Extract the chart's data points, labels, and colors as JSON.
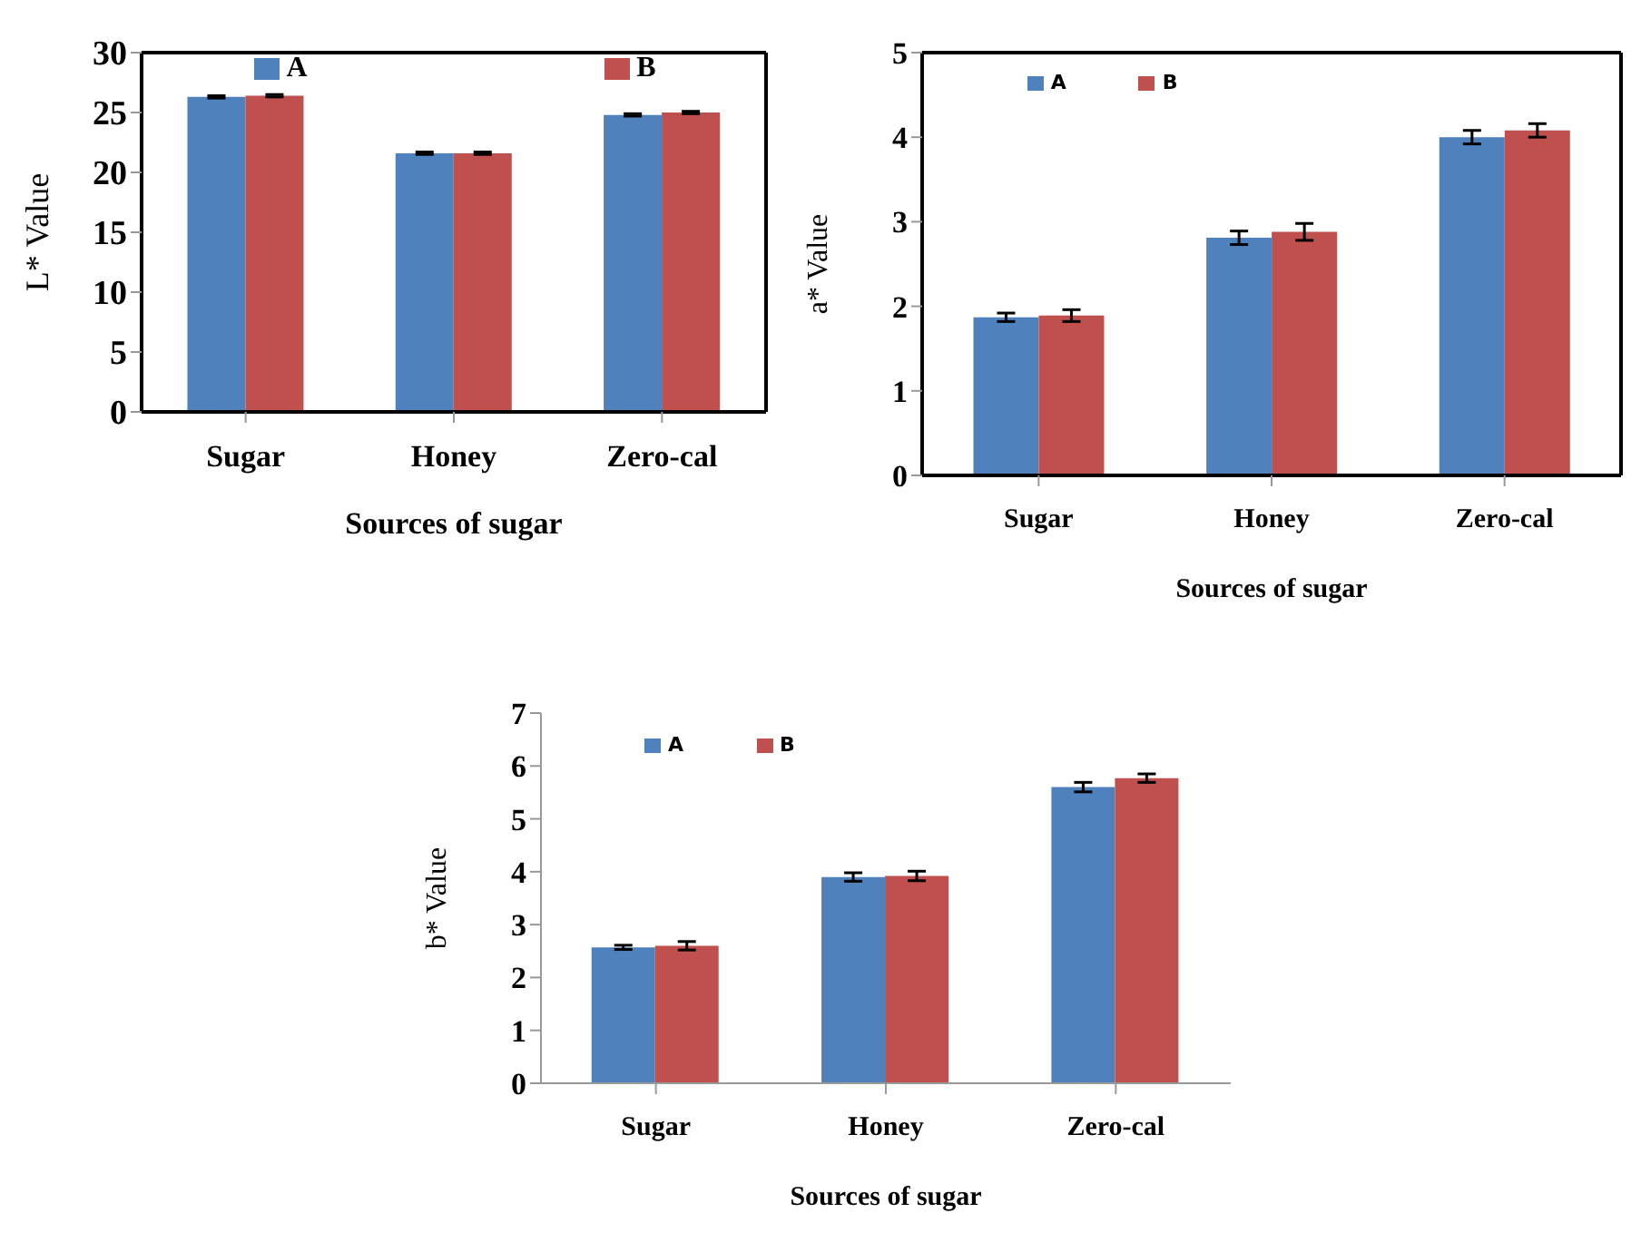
{
  "chart_data": [
    {
      "type": "bar",
      "categories": [
        "Sugar",
        "Honey",
        "Zero-cal"
      ],
      "xlabel": "Sources of sugar",
      "ylabel": "L* Value",
      "ylim": [
        0,
        30
      ],
      "yticks": [
        0,
        5,
        10,
        15,
        20,
        25,
        30
      ],
      "grid": false,
      "legend": "top",
      "series": [
        {
          "name": "A",
          "color": "#4f81bd",
          "values": [
            26.3,
            21.6,
            24.8
          ],
          "errors": [
            0.1,
            0.1,
            0.1
          ]
        },
        {
          "name": "B",
          "color": "#c0504d",
          "values": [
            26.4,
            21.6,
            25.0
          ],
          "errors": [
            0.1,
            0.1,
            0.1
          ]
        }
      ]
    },
    {
      "type": "bar",
      "categories": [
        "Sugar",
        "Honey",
        "Zero-cal"
      ],
      "xlabel": "Sources of sugar",
      "ylabel": "a* Value",
      "ylim": [
        0,
        5
      ],
      "yticks": [
        0,
        1,
        2,
        3,
        4,
        5
      ],
      "grid": false,
      "legend": "top left",
      "series": [
        {
          "name": "A",
          "color": "#4f81bd",
          "values": [
            1.87,
            2.81,
            4.0
          ],
          "errors": [
            0.05,
            0.08,
            0.08
          ]
        },
        {
          "name": "B",
          "color": "#c0504d",
          "values": [
            1.89,
            2.88,
            4.08
          ],
          "errors": [
            0.07,
            0.1,
            0.08
          ]
        }
      ]
    },
    {
      "type": "bar",
      "categories": [
        "Sugar",
        "Honey",
        "Zero-cal"
      ],
      "xlabel": "Sources of sugar",
      "ylabel": "b* Value",
      "ylim": [
        0,
        7
      ],
      "yticks": [
        0,
        1,
        2,
        3,
        4,
        5,
        6,
        7
      ],
      "grid": false,
      "legend": "top left",
      "series": [
        {
          "name": "A",
          "color": "#4f81bd",
          "values": [
            2.57,
            3.9,
            5.6
          ],
          "errors": [
            0.04,
            0.08,
            0.09
          ]
        },
        {
          "name": "B",
          "color": "#c0504d",
          "values": [
            2.6,
            3.92,
            5.77
          ],
          "errors": [
            0.08,
            0.09,
            0.08
          ]
        }
      ]
    }
  ]
}
